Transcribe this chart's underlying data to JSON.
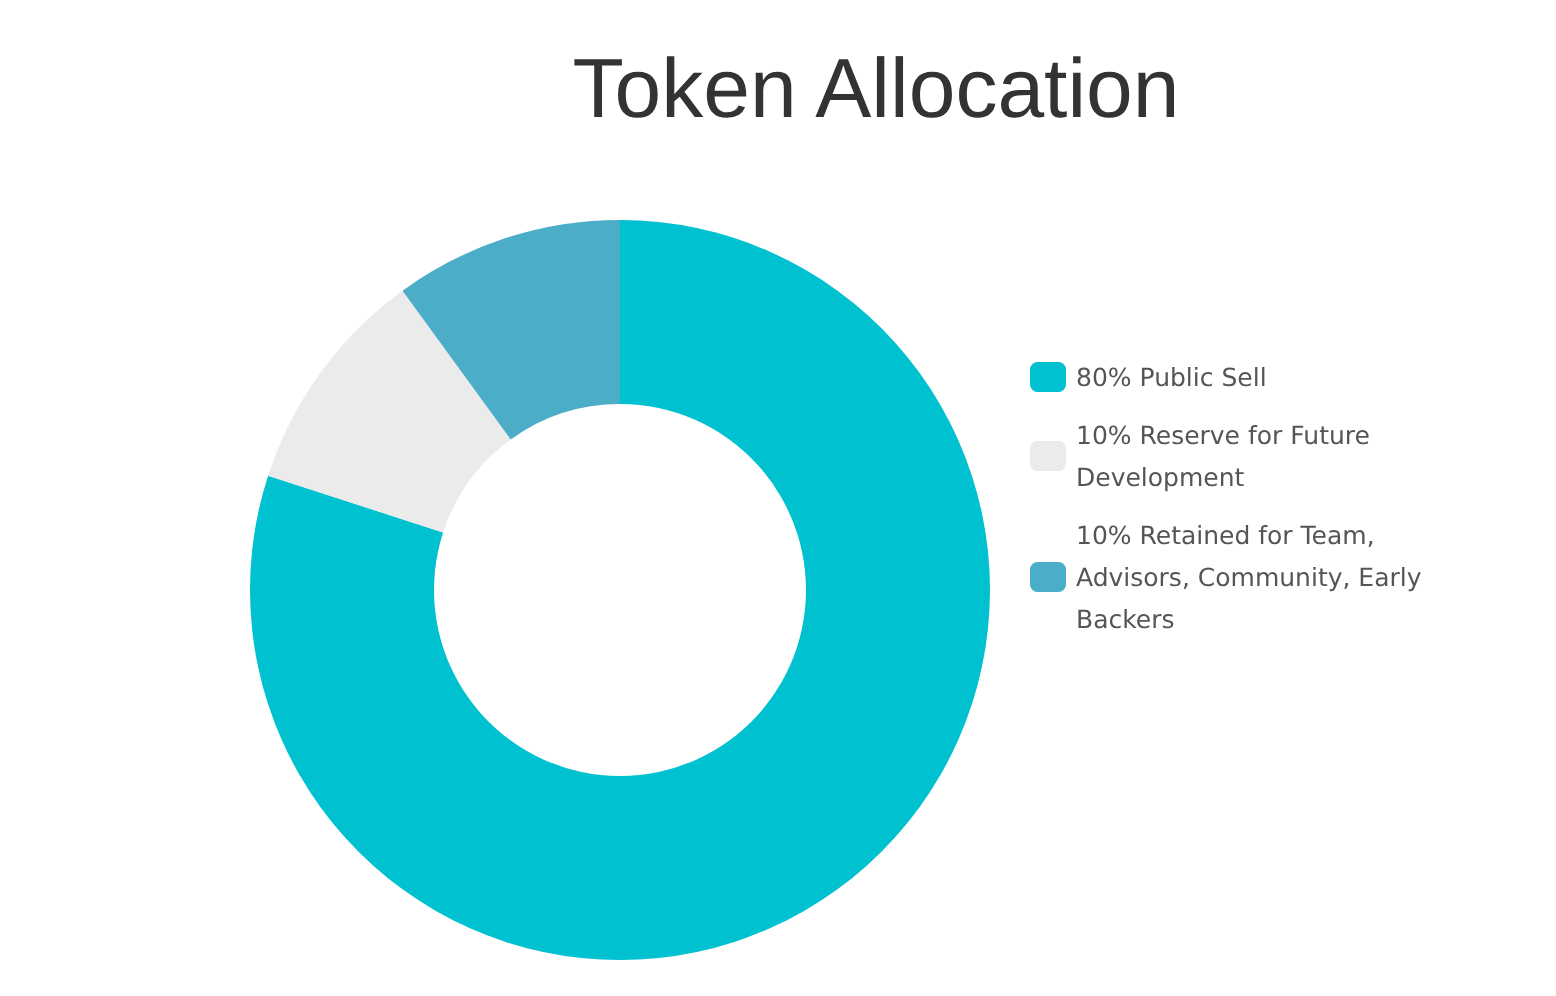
{
  "chart_data": {
    "type": "donut",
    "title": "Token Allocation",
    "categories": [
      "80% Public Sell",
      "10% Reserve for Future Development",
      "10% Retained for Team, Advisors, Community, Early Backers"
    ],
    "values": [
      80,
      10,
      10
    ],
    "colors": [
      "#00c1d0",
      "#ebebeb",
      "#4badc7"
    ],
    "legend": "right"
  }
}
